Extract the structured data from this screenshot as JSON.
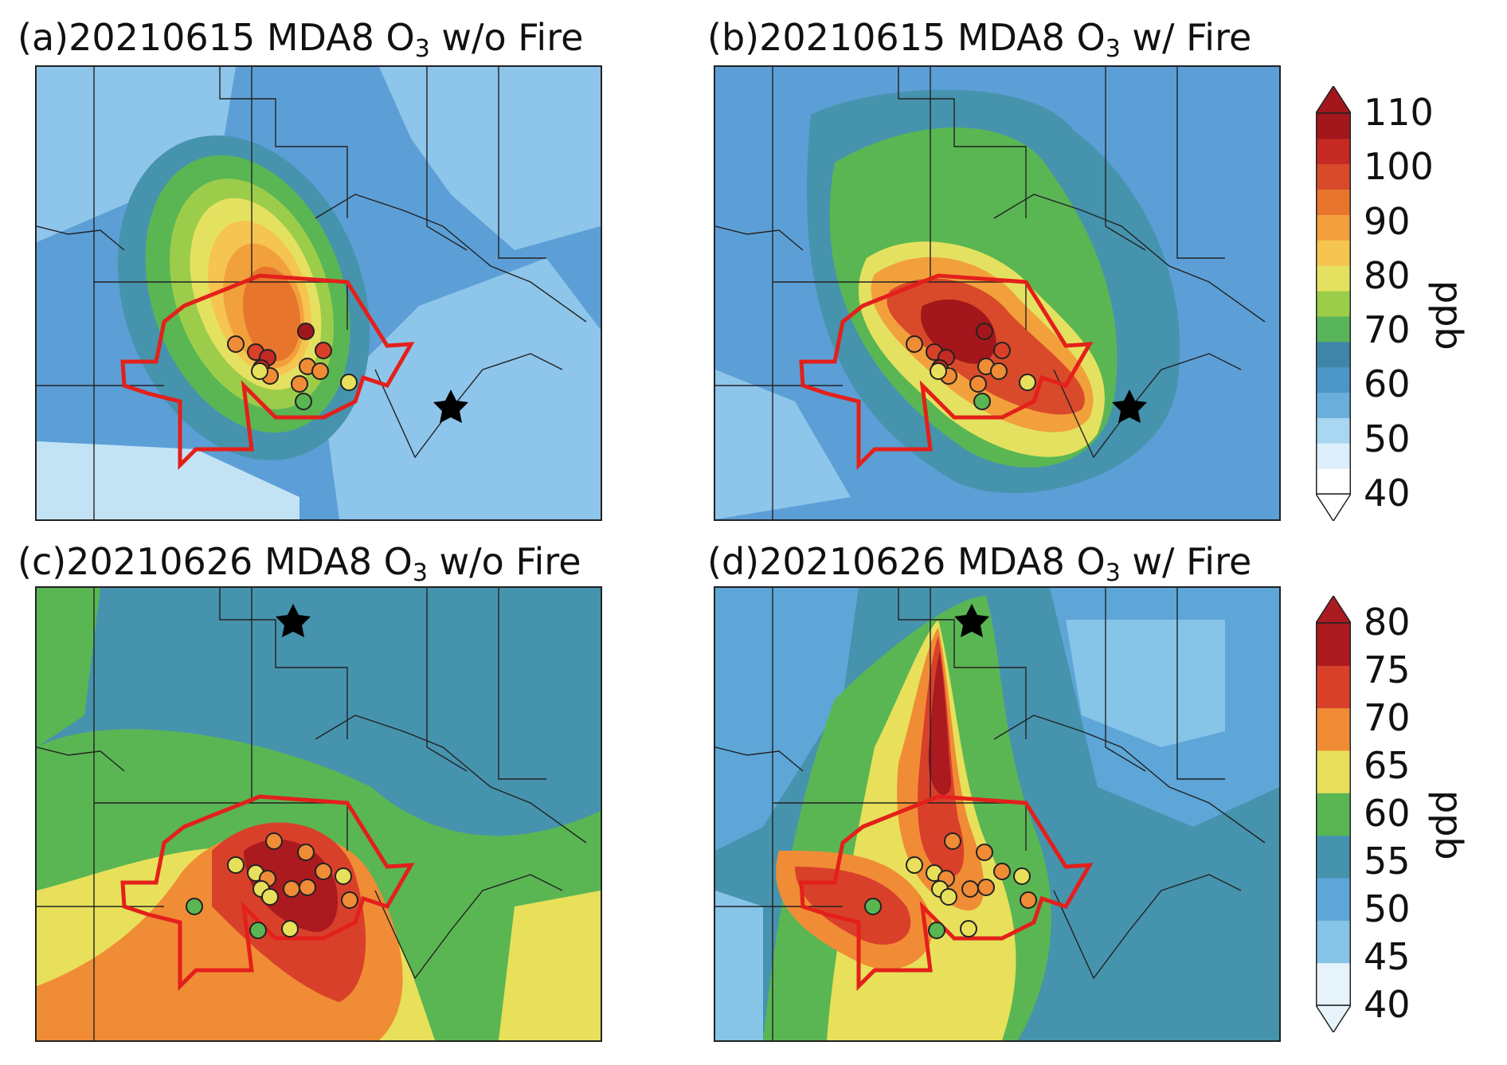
{
  "panels": [
    {
      "id": "a",
      "title_prefix": "(a)20210615 MDA8 O",
      "title_sub": "3",
      "title_suffix": " w/o Fire",
      "colorbar": "top"
    },
    {
      "id": "b",
      "title_prefix": "(b)20210615 MDA8 O",
      "title_sub": "3",
      "title_suffix": " w/ Fire",
      "colorbar": "top"
    },
    {
      "id": "c",
      "title_prefix": "(c)20210626 MDA8 O",
      "title_sub": "3",
      "title_suffix": " w/o Fire",
      "colorbar": "bottom"
    },
    {
      "id": "d",
      "title_prefix": "(d)20210626 MDA8 O",
      "title_sub": "3",
      "title_suffix": " w/ Fire",
      "colorbar": "bottom"
    }
  ],
  "colorbars": {
    "top": {
      "unit": "ppb",
      "ticks": [
        "40",
        "50",
        "60",
        "70",
        "80",
        "90",
        "100",
        "110"
      ],
      "colors": [
        "#ffffff",
        "#dceefa",
        "#a9d6f0",
        "#6aaedc",
        "#4c95c7",
        "#3f85a8",
        "#58b55a",
        "#9ccd4a",
        "#e5e160",
        "#f6c450",
        "#f2a03c",
        "#e8752c",
        "#d94a2a",
        "#c42a23",
        "#a3161b"
      ]
    },
    "bottom": {
      "unit": "ppb",
      "ticks": [
        "40",
        "45",
        "50",
        "55",
        "60",
        "65",
        "70",
        "75",
        "80"
      ],
      "colors": [
        "#e7f3fb",
        "#86c4e8",
        "#5da6d7",
        "#4693ae",
        "#5ab653",
        "#e8e05a",
        "#f08c36",
        "#d9402a",
        "#ab1a1f"
      ]
    }
  },
  "markers": {
    "fire_location": "star",
    "monitor_sites": "circle",
    "boundary_color": "#e3201b"
  }
}
